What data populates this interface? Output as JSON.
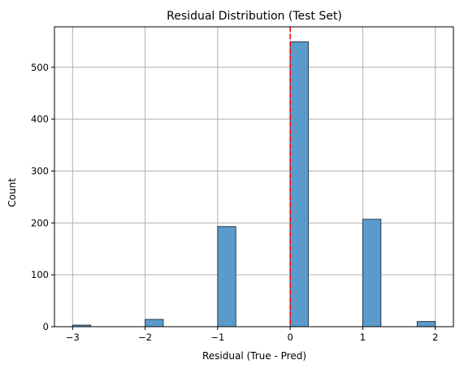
{
  "chart_data": {
    "type": "bar",
    "title": "Residual Distribution (Test Set)",
    "xlabel": "Residual (True - Pred)",
    "ylabel": "Count",
    "xlim": [
      -3.25,
      2.25
    ],
    "ylim": [
      0,
      578
    ],
    "x_ticks": [
      -3,
      -2,
      -1,
      0,
      1,
      2
    ],
    "x_tick_labels": [
      "−3",
      "−2",
      "−1",
      "0",
      "1",
      "2"
    ],
    "y_ticks": [
      0,
      100,
      200,
      300,
      400,
      500
    ],
    "y_tick_labels": [
      "0",
      "100",
      "200",
      "300",
      "400",
      "500"
    ],
    "grid": true,
    "bin_width": 0.25,
    "bins": [
      {
        "x0": -3.0,
        "x1": -2.75,
        "count": 3
      },
      {
        "x0": -2.75,
        "x1": -2.5,
        "count": 0
      },
      {
        "x0": -2.5,
        "x1": -2.25,
        "count": 0
      },
      {
        "x0": -2.25,
        "x1": -2.0,
        "count": 0
      },
      {
        "x0": -2.0,
        "x1": -1.75,
        "count": 14
      },
      {
        "x0": -1.75,
        "x1": -1.5,
        "count": 0
      },
      {
        "x0": -1.5,
        "x1": -1.25,
        "count": 0
      },
      {
        "x0": -1.25,
        "x1": -1.0,
        "count": 0
      },
      {
        "x0": -1.0,
        "x1": -0.75,
        "count": 193
      },
      {
        "x0": -0.75,
        "x1": -0.5,
        "count": 0
      },
      {
        "x0": -0.5,
        "x1": -0.25,
        "count": 0
      },
      {
        "x0": -0.25,
        "x1": 0.0,
        "count": 0
      },
      {
        "x0": 0.0,
        "x1": 0.25,
        "count": 549
      },
      {
        "x0": 0.25,
        "x1": 0.5,
        "count": 0
      },
      {
        "x0": 0.5,
        "x1": 0.75,
        "count": 0
      },
      {
        "x0": 0.75,
        "x1": 1.0,
        "count": 0
      },
      {
        "x0": 1.0,
        "x1": 1.25,
        "count": 207
      },
      {
        "x0": 1.25,
        "x1": 1.5,
        "count": 0
      },
      {
        "x0": 1.5,
        "x1": 1.75,
        "count": 0
      },
      {
        "x0": 1.75,
        "x1": 2.0,
        "count": 10
      }
    ],
    "reference_line": {
      "x": 0,
      "color": "#ff0000",
      "style": "dashed"
    },
    "colors": {
      "bar_fill": "#5b9bcb",
      "bar_edge": "#2b3a4a",
      "grid": "#b0b0b0",
      "axis": "#000000"
    }
  }
}
